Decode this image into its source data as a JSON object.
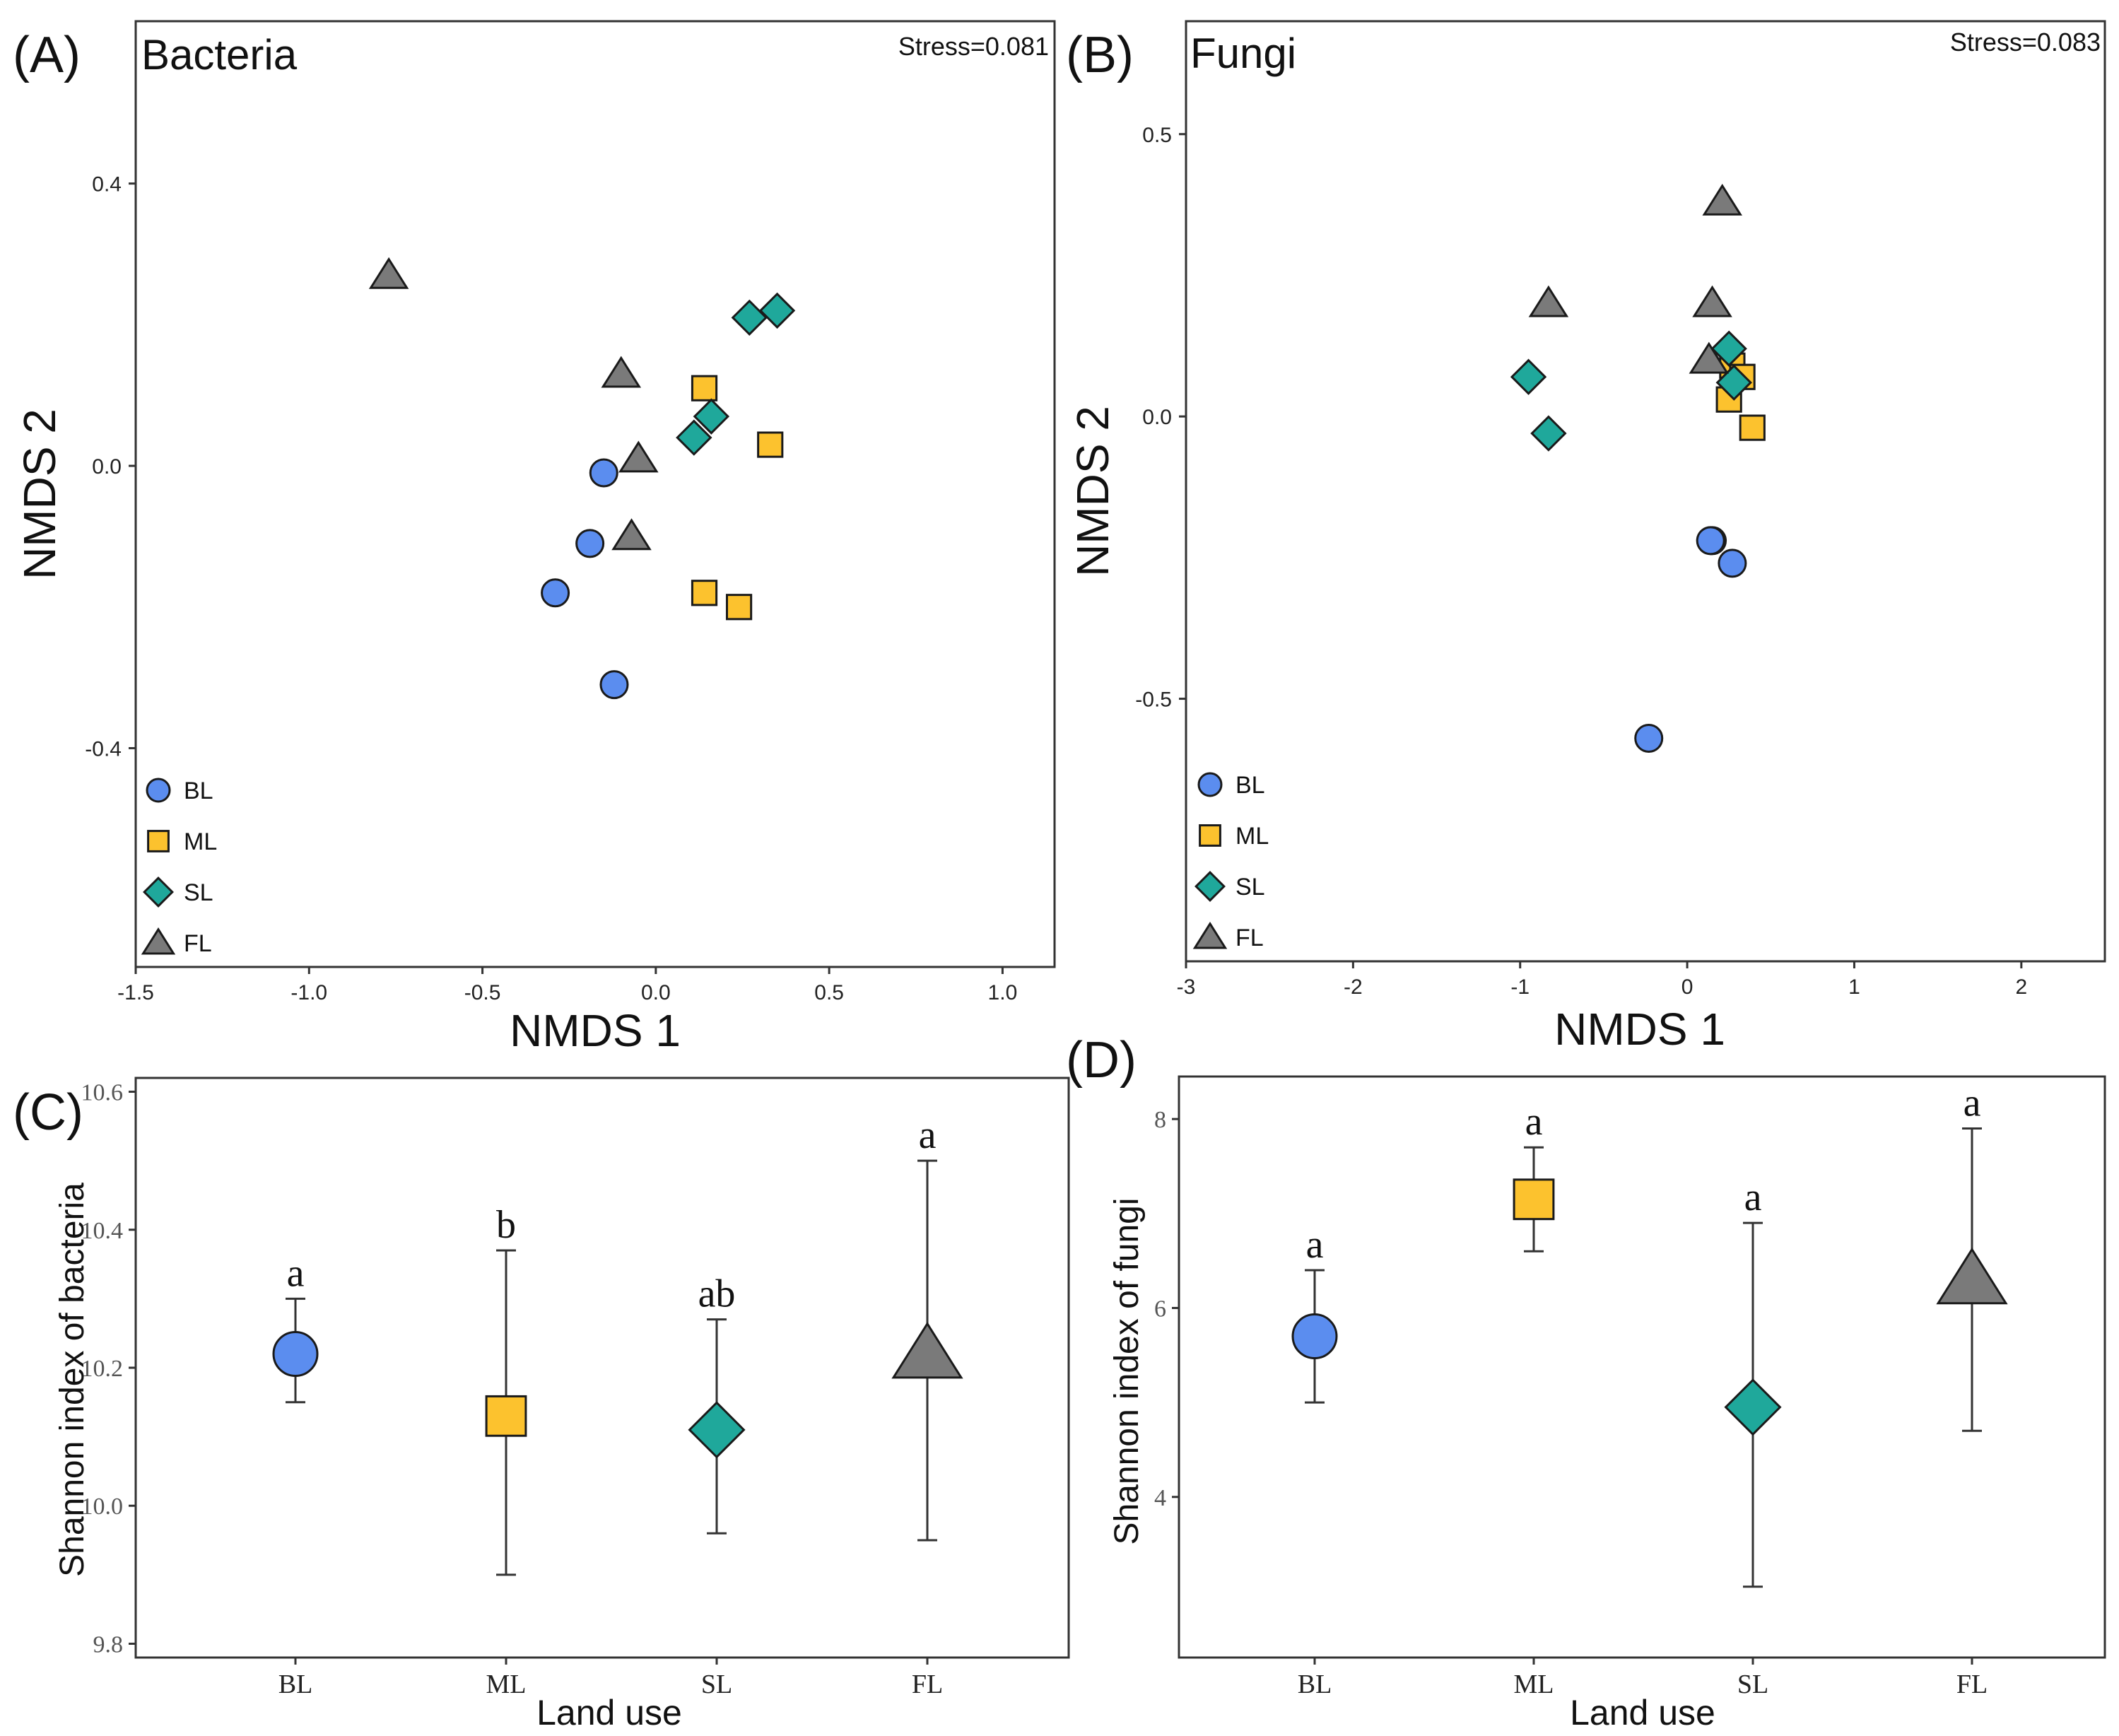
{
  "colors": {
    "BL": "#5b8def",
    "ML": "#fcc22e",
    "SL": "#1fa89b",
    "FL": "#7a7a7a"
  },
  "chart_data": [
    {
      "type": "scatter",
      "panel_label": "(A)",
      "title": "Bacteria",
      "stress": "Stress=0.081",
      "xlabel": "NMDS 1",
      "ylabel": "NMDS 2",
      "xlim": [
        -1.5,
        1.15
      ],
      "ylim": [
        -0.71,
        0.63
      ],
      "xticks": [
        -1.5,
        -1.0,
        -0.5,
        0.0,
        0.5,
        1.0
      ],
      "xtick_labels": [
        "-1.5",
        "-1.0",
        "-0.5",
        "0.0",
        "0.5",
        "1.0"
      ],
      "yticks": [
        -0.4,
        0.0,
        0.4
      ],
      "ytick_labels": [
        "-0.4",
        "0.0",
        "0.4"
      ],
      "legend": [
        "BL",
        "ML",
        "SL",
        "FL"
      ],
      "legend_position": "bottom-left",
      "series": [
        {
          "name": "BL",
          "shape": "circle",
          "points": [
            [
              -0.15,
              -0.01
            ],
            [
              -0.19,
              -0.11
            ],
            [
              -0.29,
              -0.18
            ],
            [
              -0.12,
              -0.31
            ]
          ]
        },
        {
          "name": "ML",
          "shape": "square",
          "points": [
            [
              0.14,
              0.11
            ],
            [
              0.33,
              0.03
            ],
            [
              0.14,
              -0.18
            ],
            [
              0.24,
              -0.2
            ]
          ]
        },
        {
          "name": "SL",
          "shape": "diamond",
          "points": [
            [
              0.27,
              0.21
            ],
            [
              0.35,
              0.22
            ],
            [
              0.16,
              0.07
            ],
            [
              0.11,
              0.04
            ]
          ]
        },
        {
          "name": "FL",
          "shape": "triangle",
          "points": [
            [
              -0.77,
              0.27
            ],
            [
              -0.1,
              0.13
            ],
            [
              -0.05,
              0.01
            ],
            [
              -0.07,
              -0.1
            ]
          ]
        }
      ]
    },
    {
      "type": "scatter",
      "panel_label": "(B)",
      "title": "Fungi",
      "stress": "Stress=0.083",
      "xlabel": "NMDS 1",
      "ylabel": "NMDS 2",
      "xlim": [
        -3.0,
        2.5
      ],
      "ylim": [
        -0.965,
        0.7
      ],
      "xticks": [
        -3,
        -2,
        -1,
        0,
        1,
        2
      ],
      "xtick_labels": [
        "-3",
        "-2",
        "-1",
        "0",
        "1",
        "2"
      ],
      "yticks": [
        -0.5,
        0.0,
        0.5
      ],
      "ytick_labels": [
        "-0.5",
        "0.0",
        "0.5"
      ],
      "legend": [
        "BL",
        "ML",
        "SL",
        "FL"
      ],
      "legend_position": "bottom-left",
      "series": [
        {
          "name": "BL",
          "shape": "circle",
          "points": [
            [
              0.15,
              -0.22
            ],
            [
              0.27,
              -0.26
            ],
            [
              -0.23,
              -0.57
            ],
            [
              0.14,
              -0.22
            ]
          ]
        },
        {
          "name": "ML",
          "shape": "square",
          "points": [
            [
              0.27,
              0.09
            ],
            [
              0.33,
              0.07
            ],
            [
              0.25,
              0.03
            ],
            [
              0.39,
              -0.02
            ]
          ]
        },
        {
          "name": "SL",
          "shape": "diamond",
          "points": [
            [
              -0.95,
              0.07
            ],
            [
              -0.83,
              -0.03
            ],
            [
              0.25,
              0.12
            ],
            [
              0.28,
              0.06
            ]
          ]
        },
        {
          "name": "FL",
          "shape": "triangle",
          "points": [
            [
              0.21,
              0.38
            ],
            [
              -0.83,
              0.2
            ],
            [
              0.15,
              0.2
            ],
            [
              0.13,
              0.1
            ]
          ]
        }
      ]
    },
    {
      "type": "errorbar",
      "panel_label": "(C)",
      "xlabel": "Land use",
      "ylabel": "Shannon index of bacteria",
      "categories": [
        "BL",
        "ML",
        "SL",
        "FL"
      ],
      "ylim": [
        9.78,
        10.62
      ],
      "yticks": [
        9.8,
        10.0,
        10.2,
        10.4,
        10.6
      ],
      "ytick_labels": [
        "9.8",
        "10.0",
        "10.2",
        "10.4",
        "10.6"
      ],
      "series": [
        {
          "name": "BL",
          "shape": "circle",
          "mean": 10.22,
          "lower": 10.15,
          "upper": 10.3,
          "letter": "a"
        },
        {
          "name": "ML",
          "shape": "square",
          "mean": 10.13,
          "lower": 9.9,
          "upper": 10.37,
          "letter": "b"
        },
        {
          "name": "SL",
          "shape": "diamond",
          "mean": 10.11,
          "lower": 9.96,
          "upper": 10.27,
          "letter": "ab"
        },
        {
          "name": "FL",
          "shape": "triangle",
          "mean": 10.22,
          "lower": 9.95,
          "upper": 10.5,
          "letter": "a"
        }
      ]
    },
    {
      "type": "errorbar",
      "panel_label": "(D)",
      "xlabel": "Land use",
      "ylabel": "Shannon index of fungi",
      "categories": [
        "BL",
        "ML",
        "SL",
        "FL"
      ],
      "ylim": [
        2.3,
        8.45
      ],
      "yticks": [
        4,
        6,
        8
      ],
      "ytick_labels": [
        "4",
        "6",
        "8"
      ],
      "series": [
        {
          "name": "BL",
          "shape": "circle",
          "mean": 5.7,
          "lower": 5.0,
          "upper": 6.4,
          "letter": "a"
        },
        {
          "name": "ML",
          "shape": "square",
          "mean": 7.15,
          "lower": 6.6,
          "upper": 7.7,
          "letter": "a"
        },
        {
          "name": "SL",
          "shape": "diamond",
          "mean": 4.95,
          "lower": 3.05,
          "upper": 6.9,
          "letter": "a"
        },
        {
          "name": "FL",
          "shape": "triangle",
          "mean": 6.3,
          "lower": 4.7,
          "upper": 7.9,
          "letter": "a"
        }
      ]
    }
  ]
}
